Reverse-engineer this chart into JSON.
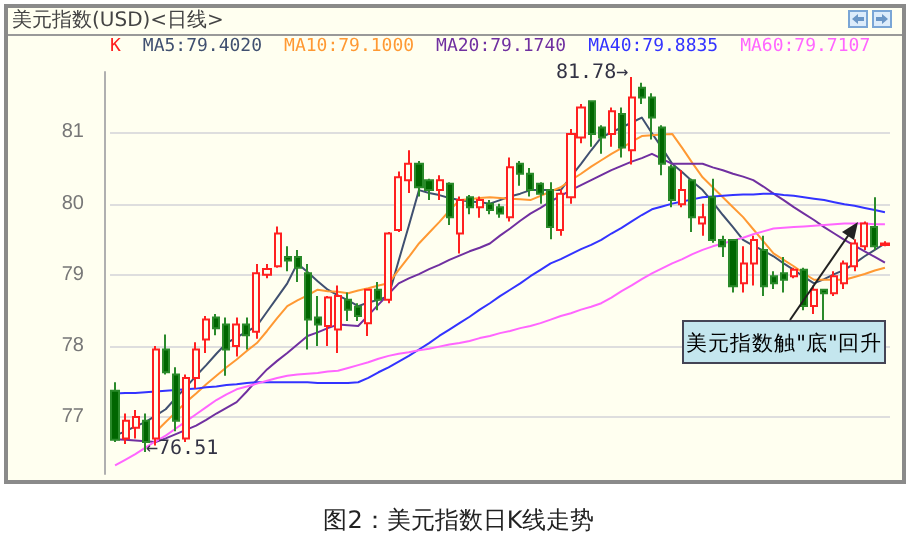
{
  "chart_data": {
    "type": "candlestick",
    "title": "图2：美元指数日K线走势",
    "subtitle": "美元指数(USD)<日线>",
    "categories": [
      null,
      null,
      null,
      null,
      null,
      null,
      null,
      null,
      null,
      null,
      null,
      null,
      null,
      null,
      null,
      null,
      null,
      null,
      null,
      null,
      null,
      null,
      null,
      null,
      null,
      null,
      null,
      null,
      null,
      null,
      null,
      null,
      null,
      null,
      null,
      null,
      null,
      null,
      null,
      null,
      null,
      null,
      null,
      null,
      null,
      null,
      null,
      null,
      null,
      null,
      null,
      null,
      null,
      null,
      null,
      null,
      null,
      null,
      null,
      null,
      null,
      null,
      null,
      null,
      null,
      null,
      null,
      null,
      null,
      null,
      null,
      null,
      null,
      null,
      null,
      null,
      null
    ],
    "ylim": [
      76.2,
      81.85
    ],
    "yticks": [
      77,
      78,
      79,
      80,
      81
    ],
    "grid": "y",
    "tick_labels": "y",
    "legend": "top left",
    "marker": "none",
    "line_style": "solid",
    "annotations": [
      "81.78→",
      "←76.51",
      "美元指数触\"底\"回升"
    ],
    "series": [
      {
        "name": "K",
        "ohlc": [
          [
            77.37,
            77.49,
            76.65,
            76.68
          ],
          [
            76.7,
            77.05,
            76.62,
            76.95
          ],
          [
            76.85,
            77.1,
            76.7,
            77.0
          ],
          [
            76.95,
            77.05,
            76.51,
            76.65
          ],
          [
            76.7,
            78.0,
            76.6,
            77.95
          ],
          [
            77.95,
            78.16,
            77.6,
            77.63
          ],
          [
            77.6,
            77.7,
            76.8,
            76.95
          ],
          [
            76.7,
            77.6,
            76.65,
            77.55
          ],
          [
            77.55,
            78.05,
            77.4,
            77.95
          ],
          [
            78.09,
            78.42,
            77.9,
            78.37
          ],
          [
            78.4,
            78.45,
            78.15,
            78.25
          ],
          [
            78.3,
            78.4,
            77.58,
            77.95
          ],
          [
            78.0,
            78.4,
            77.85,
            78.3
          ],
          [
            78.3,
            78.4,
            77.95,
            78.15
          ],
          [
            78.2,
            79.15,
            78.1,
            79.02
          ],
          [
            79.0,
            79.15,
            78.95,
            79.08
          ],
          [
            79.12,
            79.68,
            79.1,
            79.58
          ],
          [
            79.25,
            79.4,
            79.05,
            79.2
          ],
          [
            79.25,
            79.35,
            78.9,
            79.1
          ],
          [
            79.02,
            79.15,
            77.95,
            78.37
          ],
          [
            78.4,
            78.7,
            78.0,
            78.3
          ],
          [
            78.28,
            78.7,
            78.0,
            78.68
          ],
          [
            78.23,
            78.85,
            77.9,
            78.7
          ],
          [
            78.65,
            78.75,
            78.35,
            78.51
          ],
          [
            78.55,
            78.6,
            78.35,
            78.42
          ],
          [
            78.32,
            78.8,
            78.14,
            78.79
          ],
          [
            78.79,
            78.9,
            78.5,
            78.65
          ],
          [
            78.65,
            79.6,
            78.6,
            79.58
          ],
          [
            79.63,
            80.45,
            79.6,
            80.37
          ],
          [
            80.33,
            80.75,
            80.15,
            80.56
          ],
          [
            80.56,
            80.6,
            80.1,
            80.23
          ],
          [
            80.33,
            80.35,
            80.05,
            80.19
          ],
          [
            80.19,
            80.4,
            80.05,
            80.33
          ],
          [
            80.28,
            80.3,
            79.7,
            79.81
          ],
          [
            79.58,
            80.1,
            79.3,
            80.05
          ],
          [
            80.09,
            80.12,
            79.85,
            79.95
          ],
          [
            79.95,
            80.1,
            79.8,
            80.05
          ],
          [
            80.0,
            80.05,
            79.85,
            79.91
          ],
          [
            79.95,
            80.0,
            79.8,
            79.86
          ],
          [
            79.81,
            80.65,
            79.75,
            80.51
          ],
          [
            80.56,
            80.6,
            80.25,
            80.42
          ],
          [
            80.42,
            80.5,
            80.1,
            80.19
          ],
          [
            80.28,
            80.3,
            80.0,
            80.14
          ],
          [
            80.19,
            80.3,
            79.5,
            79.67
          ],
          [
            79.63,
            80.2,
            79.55,
            80.14
          ],
          [
            80.09,
            81.05,
            80.0,
            80.98
          ],
          [
            80.93,
            81.4,
            80.85,
            81.35
          ],
          [
            81.44,
            81.45,
            80.8,
            80.98
          ],
          [
            81.07,
            81.1,
            80.7,
            80.93
          ],
          [
            80.98,
            81.35,
            80.8,
            81.3
          ],
          [
            81.26,
            81.35,
            80.65,
            80.79
          ],
          [
            80.75,
            81.78,
            80.55,
            81.49
          ],
          [
            81.63,
            81.7,
            81.4,
            81.49
          ],
          [
            81.49,
            81.55,
            80.9,
            81.21
          ],
          [
            81.07,
            81.1,
            80.4,
            80.56
          ],
          [
            80.51,
            80.55,
            79.95,
            80.05
          ],
          [
            79.99,
            80.47,
            79.95,
            80.19
          ],
          [
            80.33,
            80.35,
            79.6,
            79.81
          ],
          [
            79.72,
            80.0,
            79.55,
            79.81
          ],
          [
            80.09,
            80.35,
            79.45,
            79.49
          ],
          [
            79.49,
            79.55,
            79.25,
            79.4
          ],
          [
            79.49,
            79.5,
            78.75,
            78.84
          ],
          [
            78.88,
            79.4,
            78.75,
            79.16
          ],
          [
            79.16,
            79.55,
            78.85,
            79.49
          ],
          [
            79.35,
            79.55,
            78.7,
            78.84
          ],
          [
            78.98,
            79.05,
            78.8,
            78.88
          ],
          [
            79.02,
            79.25,
            78.75,
            78.93
          ],
          [
            78.98,
            79.1,
            78.95,
            79.07
          ],
          [
            79.07,
            79.1,
            78.5,
            78.56
          ],
          [
            78.56,
            78.85,
            78.45,
            78.79
          ],
          [
            78.79,
            78.8,
            78.35,
            78.74
          ],
          [
            78.74,
            79.05,
            78.7,
            78.98
          ],
          [
            78.88,
            79.2,
            78.8,
            79.16
          ],
          [
            79.12,
            79.5,
            79.05,
            79.44
          ],
          [
            79.4,
            79.75,
            79.35,
            79.72
          ],
          [
            79.67,
            80.09,
            79.35,
            79.4
          ],
          [
            79.42,
            79.47,
            79.4,
            79.44
          ]
        ]
      },
      {
        "name": "MA5:79.4020",
        "type": "line",
        "color": "#405070",
        "values": [
          76.74,
          76.8,
          76.87,
          76.93,
          77.02,
          77.11,
          77.27,
          77.42,
          77.58,
          77.73,
          77.89,
          78.04,
          78.12,
          78.2,
          78.28,
          78.48,
          78.68,
          78.88,
          79.16,
          79.04,
          78.91,
          78.79,
          78.71,
          78.64,
          78.56,
          78.61,
          78.65,
          78.7,
          79.2,
          79.69,
          80.19,
          80.15,
          80.12,
          80.08,
          80.05,
          80.03,
          80.02,
          80.0,
          80.05,
          80.1,
          80.14,
          80.19,
          80.19,
          80.19,
          80.19,
          80.38,
          80.56,
          80.75,
          80.93,
          81.0,
          81.07,
          81.14,
          81.21,
          80.99,
          80.78,
          80.56,
          80.44,
          80.31,
          80.19,
          80.02,
          79.84,
          79.67,
          79.49,
          79.41,
          79.34,
          79.26,
          79.16,
          79.07,
          78.97,
          78.88,
          78.94,
          79.01,
          79.07,
          79.16,
          79.26,
          79.35,
          79.44
        ]
      },
      {
        "name": "MA10:79.1000",
        "type": "line",
        "color": "#ff9933",
        "values": [
          null,
          null,
          null,
          null,
          76.79,
          76.93,
          77.07,
          77.21,
          77.33,
          77.46,
          77.58,
          77.7,
          77.81,
          77.93,
          78.04,
          78.21,
          78.39,
          78.56,
          78.64,
          78.71,
          78.79,
          78.77,
          78.76,
          78.74,
          78.78,
          78.81,
          78.85,
          78.88,
          79.07,
          79.25,
          79.44,
          79.59,
          79.74,
          79.9,
          80.05,
          80.06,
          80.08,
          80.09,
          80.08,
          80.07,
          80.06,
          80.05,
          80.11,
          80.17,
          80.23,
          80.33,
          80.42,
          80.52,
          80.61,
          80.7,
          80.78,
          80.87,
          80.95,
          80.96,
          80.97,
          80.98,
          80.78,
          80.57,
          80.37,
          80.23,
          80.09,
          79.95,
          79.81,
          79.64,
          79.47,
          79.3,
          79.21,
          79.12,
          79.02,
          78.93,
          78.93,
          78.93,
          78.93,
          78.97,
          79.01,
          79.06,
          79.1
        ]
      },
      {
        "name": "MA20:79.1740",
        "type": "line",
        "color": "#7030a0",
        "values": [
          76.69,
          76.68,
          76.67,
          76.66,
          76.65,
          76.7,
          76.76,
          76.82,
          76.88,
          76.96,
          77.05,
          77.13,
          77.21,
          77.36,
          77.52,
          77.67,
          77.79,
          77.9,
          78.02,
          78.14,
          78.19,
          78.25,
          78.3,
          78.29,
          78.28,
          78.43,
          78.58,
          78.73,
          78.88,
          78.95,
          79.01,
          79.08,
          79.14,
          79.21,
          79.27,
          79.33,
          79.38,
          79.44,
          79.55,
          79.65,
          79.76,
          79.86,
          79.94,
          80.03,
          80.11,
          80.19,
          80.26,
          80.33,
          80.4,
          80.47,
          80.53,
          80.59,
          80.64,
          80.7,
          80.63,
          80.56,
          80.56,
          80.56,
          80.56,
          80.51,
          80.47,
          80.42,
          80.38,
          80.33,
          80.24,
          80.14,
          80.05,
          79.95,
          79.86,
          79.77,
          79.67,
          79.58,
          79.49,
          79.41,
          79.33,
          79.25,
          79.17
        ]
      },
      {
        "name": "MA40:79.8835",
        "type": "line",
        "color": "#3333ff",
        "values": [
          77.33,
          77.34,
          77.34,
          77.35,
          77.36,
          77.37,
          77.38,
          77.39,
          77.4,
          77.42,
          77.43,
          77.45,
          77.46,
          77.48,
          77.49,
          77.49,
          77.49,
          77.49,
          77.49,
          77.49,
          77.48,
          77.48,
          77.48,
          77.48,
          77.49,
          77.55,
          77.63,
          77.7,
          77.78,
          77.86,
          77.95,
          78.04,
          78.14,
          78.23,
          78.32,
          78.41,
          78.51,
          78.6,
          78.7,
          78.79,
          78.88,
          78.98,
          79.07,
          79.16,
          79.22,
          79.29,
          79.36,
          79.42,
          79.49,
          79.58,
          79.66,
          79.75,
          79.84,
          79.92,
          79.96,
          80.0,
          80.03,
          80.06,
          80.09,
          80.1,
          80.11,
          80.12,
          80.13,
          80.13,
          80.14,
          80.14,
          80.12,
          80.11,
          80.09,
          80.07,
          80.05,
          80.02,
          79.99,
          79.97,
          79.94,
          79.91,
          79.88
        ]
      },
      {
        "name": "MA60:79.7107",
        "type": "line",
        "color": "#ff66ff",
        "values": [
          76.32,
          76.4,
          76.48,
          76.57,
          76.66,
          76.74,
          76.84,
          76.94,
          77.04,
          77.14,
          77.24,
          77.32,
          77.39,
          77.43,
          77.47,
          77.51,
          77.55,
          77.58,
          77.6,
          77.61,
          77.62,
          77.64,
          77.65,
          77.69,
          77.73,
          77.77,
          77.82,
          77.86,
          77.89,
          77.91,
          77.94,
          77.96,
          77.99,
          78.02,
          78.04,
          78.07,
          78.11,
          78.14,
          78.18,
          78.21,
          78.25,
          78.28,
          78.32,
          78.37,
          78.42,
          78.46,
          78.51,
          78.55,
          78.6,
          78.68,
          78.77,
          78.85,
          78.94,
          79.02,
          79.09,
          79.16,
          79.22,
          79.29,
          79.35,
          79.4,
          79.44,
          79.48,
          79.52,
          79.57,
          79.61,
          79.65,
          79.66,
          79.67,
          79.68,
          79.69,
          79.7,
          79.71,
          79.72,
          79.72,
          79.72,
          79.71,
          79.71
        ]
      }
    ]
  }
}
